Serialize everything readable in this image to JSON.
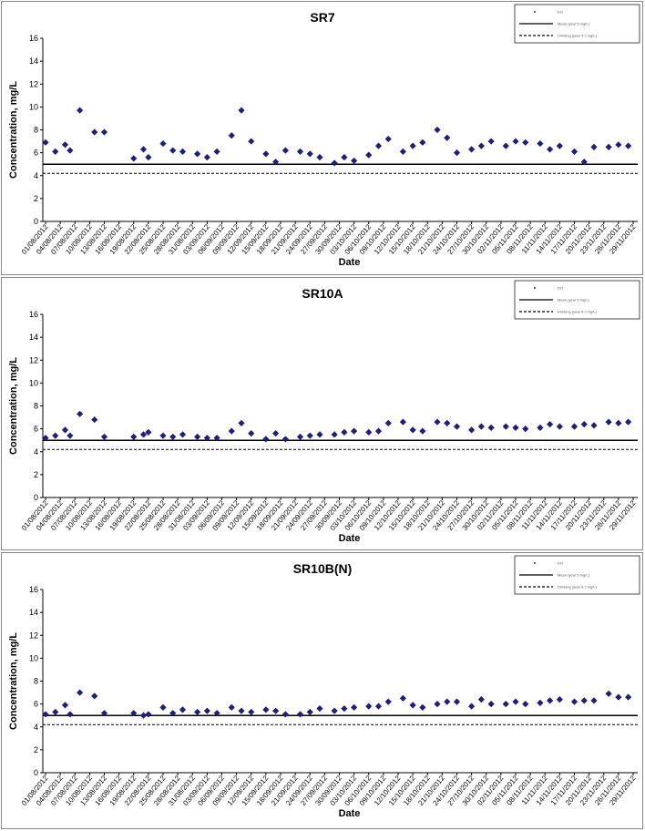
{
  "chart_data": [
    {
      "type": "scatter",
      "title": "SR7",
      "xlabel": "Date",
      "ylabel": "Concentration, mg/L",
      "ylim": [
        0,
        16
      ],
      "yticks": [
        0,
        2,
        4,
        6,
        8,
        10,
        12,
        14,
        16
      ],
      "x_tick_labels": [
        "01/08/2012",
        "04/08/2012",
        "07/08/2012",
        "10/08/2012",
        "13/08/2012",
        "16/08/2012",
        "19/08/2012",
        "22/08/2012",
        "25/08/2012",
        "28/08/2012",
        "31/08/2012",
        "03/09/2012",
        "06/09/2012",
        "09/09/2012",
        "12/09/2012",
        "15/09/2012",
        "18/09/2012",
        "21/09/2012",
        "24/09/2012",
        "27/09/2012",
        "30/09/2012",
        "03/10/2012",
        "06/10/2012",
        "09/10/2012",
        "12/10/2012",
        "15/10/2012",
        "18/10/2012",
        "21/10/2012",
        "24/10/2012",
        "27/10/2012",
        "30/10/2012",
        "02/11/2012",
        "05/11/2012",
        "08/11/2012",
        "11/11/2012",
        "14/11/2012",
        "17/11/2012",
        "20/11/2012",
        "23/11/2012",
        "26/11/2012",
        "29/11/2012"
      ],
      "grid": false,
      "legend_position": "top-right",
      "series": [
        {
          "name": "DO",
          "marker": "diamond",
          "color": "#1f1f7a",
          "points": [
            {
              "x": "01/08/2012",
              "y": 6.9
            },
            {
              "x": "03/08/2012",
              "y": 6.1
            },
            {
              "x": "05/08/2012",
              "y": 6.7
            },
            {
              "x": "06/08/2012",
              "y": 6.2
            },
            {
              "x": "08/08/2012",
              "y": 9.7
            },
            {
              "x": "11/08/2012",
              "y": 7.8
            },
            {
              "x": "13/08/2012",
              "y": 7.8
            },
            {
              "x": "19/08/2012",
              "y": 5.5
            },
            {
              "x": "21/08/2012",
              "y": 6.3
            },
            {
              "x": "22/08/2012",
              "y": 5.6
            },
            {
              "x": "25/08/2012",
              "y": 6.8
            },
            {
              "x": "27/08/2012",
              "y": 6.2
            },
            {
              "x": "29/08/2012",
              "y": 6.1
            },
            {
              "x": "01/09/2012",
              "y": 5.9
            },
            {
              "x": "03/09/2012",
              "y": 5.6
            },
            {
              "x": "05/09/2012",
              "y": 6.1
            },
            {
              "x": "08/09/2012",
              "y": 7.5
            },
            {
              "x": "10/09/2012",
              "y": 9.7
            },
            {
              "x": "12/09/2012",
              "y": 7.0
            },
            {
              "x": "15/09/2012",
              "y": 5.9
            },
            {
              "x": "17/09/2012",
              "y": 5.2
            },
            {
              "x": "19/09/2012",
              "y": 6.2
            },
            {
              "x": "22/09/2012",
              "y": 6.1
            },
            {
              "x": "24/09/2012",
              "y": 5.9
            },
            {
              "x": "26/09/2012",
              "y": 5.6
            },
            {
              "x": "29/09/2012",
              "y": 5.1
            },
            {
              "x": "01/10/2012",
              "y": 5.6
            },
            {
              "x": "03/10/2012",
              "y": 5.3
            },
            {
              "x": "06/10/2012",
              "y": 5.8
            },
            {
              "x": "08/10/2012",
              "y": 6.6
            },
            {
              "x": "10/10/2012",
              "y": 7.2
            },
            {
              "x": "13/10/2012",
              "y": 6.1
            },
            {
              "x": "15/10/2012",
              "y": 6.6
            },
            {
              "x": "17/10/2012",
              "y": 6.9
            },
            {
              "x": "20/10/2012",
              "y": 8.0
            },
            {
              "x": "22/10/2012",
              "y": 7.3
            },
            {
              "x": "24/10/2012",
              "y": 6.0
            },
            {
              "x": "27/10/2012",
              "y": 6.3
            },
            {
              "x": "29/10/2012",
              "y": 6.6
            },
            {
              "x": "31/10/2012",
              "y": 7.0
            },
            {
              "x": "03/11/2012",
              "y": 6.6
            },
            {
              "x": "05/11/2012",
              "y": 7.0
            },
            {
              "x": "07/11/2012",
              "y": 6.9
            },
            {
              "x": "10/11/2012",
              "y": 6.8
            },
            {
              "x": "12/11/2012",
              "y": 6.3
            },
            {
              "x": "14/11/2012",
              "y": 6.6
            },
            {
              "x": "17/11/2012",
              "y": 6.1
            },
            {
              "x": "19/11/2012",
              "y": 5.2
            },
            {
              "x": "21/11/2012",
              "y": 6.5
            },
            {
              "x": "24/11/2012",
              "y": 6.5
            },
            {
              "x": "26/11/2012",
              "y": 6.7
            },
            {
              "x": "28/11/2012",
              "y": 6.6
            }
          ]
        },
        {
          "name": "Mean (year 5 mg/L)",
          "type": "hline",
          "y": 5.0,
          "style": "solid",
          "color": "#000000"
        },
        {
          "name": "Drinking (year 4.2 mg/L)",
          "type": "hline",
          "y": 4.2,
          "style": "dashed",
          "color": "#000000"
        }
      ]
    },
    {
      "type": "scatter",
      "title": "SR10A",
      "xlabel": "Date",
      "ylabel": "Concentration, mg/L",
      "ylim": [
        0,
        16
      ],
      "yticks": [
        0,
        2,
        4,
        6,
        8,
        10,
        12,
        14,
        16
      ],
      "x_tick_labels": [
        "01/08/2012",
        "04/08/2012",
        "07/08/2012",
        "10/08/2012",
        "13/08/2012",
        "16/08/2012",
        "19/08/2012",
        "22/08/2012",
        "25/08/2012",
        "28/08/2012",
        "31/08/2012",
        "03/09/2012",
        "06/09/2012",
        "09/09/2012",
        "12/09/2012",
        "15/09/2012",
        "18/09/2012",
        "21/09/2012",
        "24/09/2012",
        "27/09/2012",
        "30/09/2012",
        "03/10/2012",
        "06/10/2012",
        "09/10/2012",
        "12/10/2012",
        "15/10/2012",
        "18/10/2012",
        "21/10/2012",
        "24/10/2012",
        "27/10/2012",
        "30/10/2012",
        "02/11/2012",
        "05/11/2012",
        "08/11/2012",
        "11/11/2012",
        "14/11/2012",
        "17/11/2012",
        "20/11/2012",
        "23/11/2012",
        "26/11/2012",
        "29/11/2012"
      ],
      "grid": false,
      "legend_position": "top-right",
      "series": [
        {
          "name": "DO",
          "marker": "diamond",
          "color": "#1f1f7a",
          "points": [
            {
              "x": "01/08/2012",
              "y": 5.2
            },
            {
              "x": "03/08/2012",
              "y": 5.4
            },
            {
              "x": "05/08/2012",
              "y": 5.9
            },
            {
              "x": "06/08/2012",
              "y": 5.4
            },
            {
              "x": "08/08/2012",
              "y": 7.3
            },
            {
              "x": "11/08/2012",
              "y": 6.8
            },
            {
              "x": "13/08/2012",
              "y": 5.3
            },
            {
              "x": "19/08/2012",
              "y": 5.3
            },
            {
              "x": "21/08/2012",
              "y": 5.5
            },
            {
              "x": "22/08/2012",
              "y": 5.7
            },
            {
              "x": "25/08/2012",
              "y": 5.4
            },
            {
              "x": "27/08/2012",
              "y": 5.3
            },
            {
              "x": "29/08/2012",
              "y": 5.5
            },
            {
              "x": "01/09/2012",
              "y": 5.3
            },
            {
              "x": "03/09/2012",
              "y": 5.2
            },
            {
              "x": "05/09/2012",
              "y": 5.2
            },
            {
              "x": "08/09/2012",
              "y": 5.8
            },
            {
              "x": "10/09/2012",
              "y": 6.5
            },
            {
              "x": "12/09/2012",
              "y": 5.6
            },
            {
              "x": "15/09/2012",
              "y": 5.1
            },
            {
              "x": "17/09/2012",
              "y": 5.6
            },
            {
              "x": "19/09/2012",
              "y": 5.1
            },
            {
              "x": "22/09/2012",
              "y": 5.3
            },
            {
              "x": "24/09/2012",
              "y": 5.4
            },
            {
              "x": "26/09/2012",
              "y": 5.5
            },
            {
              "x": "29/09/2012",
              "y": 5.5
            },
            {
              "x": "01/10/2012",
              "y": 5.7
            },
            {
              "x": "03/10/2012",
              "y": 5.8
            },
            {
              "x": "06/10/2012",
              "y": 5.7
            },
            {
              "x": "08/10/2012",
              "y": 5.8
            },
            {
              "x": "10/10/2012",
              "y": 6.5
            },
            {
              "x": "13/10/2012",
              "y": 6.6
            },
            {
              "x": "15/10/2012",
              "y": 5.9
            },
            {
              "x": "17/10/2012",
              "y": 5.8
            },
            {
              "x": "20/10/2012",
              "y": 6.6
            },
            {
              "x": "22/10/2012",
              "y": 6.5
            },
            {
              "x": "24/10/2012",
              "y": 6.2
            },
            {
              "x": "27/10/2012",
              "y": 5.9
            },
            {
              "x": "29/10/2012",
              "y": 6.2
            },
            {
              "x": "31/10/2012",
              "y": 6.1
            },
            {
              "x": "03/11/2012",
              "y": 6.2
            },
            {
              "x": "05/11/2012",
              "y": 6.1
            },
            {
              "x": "07/11/2012",
              "y": 6.0
            },
            {
              "x": "10/11/2012",
              "y": 6.1
            },
            {
              "x": "12/11/2012",
              "y": 6.4
            },
            {
              "x": "14/11/2012",
              "y": 6.2
            },
            {
              "x": "17/11/2012",
              "y": 6.2
            },
            {
              "x": "19/11/2012",
              "y": 6.4
            },
            {
              "x": "21/11/2012",
              "y": 6.3
            },
            {
              "x": "24/11/2012",
              "y": 6.6
            },
            {
              "x": "26/11/2012",
              "y": 6.5
            },
            {
              "x": "28/11/2012",
              "y": 6.6
            }
          ]
        },
        {
          "name": "Mean (year 5 mg/L)",
          "type": "hline",
          "y": 5.0,
          "style": "solid",
          "color": "#000000"
        },
        {
          "name": "Drinking (year 4.2 mg/L)",
          "type": "hline",
          "y": 4.2,
          "style": "dashed",
          "color": "#000000"
        }
      ]
    },
    {
      "type": "scatter",
      "title": "SR10B(N)",
      "xlabel": "Date",
      "ylabel": "Concentration, mg/L",
      "ylim": [
        0,
        16
      ],
      "yticks": [
        0,
        2,
        4,
        6,
        8,
        10,
        12,
        14,
        16
      ],
      "x_tick_labels": [
        "01/08/2012",
        "04/08/2012",
        "07/08/2012",
        "10/08/2012",
        "13/08/2012",
        "16/08/2012",
        "19/08/2012",
        "22/08/2012",
        "25/08/2012",
        "28/08/2012",
        "31/08/2012",
        "03/09/2012",
        "06/09/2012",
        "09/09/2012",
        "12/09/2012",
        "15/09/2012",
        "18/09/2012",
        "21/09/2012",
        "24/09/2012",
        "27/09/2012",
        "30/09/2012",
        "03/10/2012",
        "06/10/2012",
        "09/10/2012",
        "12/10/2012",
        "15/10/2012",
        "18/10/2012",
        "21/10/2012",
        "24/10/2012",
        "27/10/2012",
        "30/10/2012",
        "02/11/2012",
        "05/11/2012",
        "08/11/2012",
        "11/11/2012",
        "14/11/2012",
        "17/11/2012",
        "20/11/2012",
        "23/11/2012",
        "26/11/2012",
        "29/11/2012"
      ],
      "grid": false,
      "legend_position": "top-right",
      "series": [
        {
          "name": "DO",
          "marker": "diamond",
          "color": "#1f1f7a",
          "points": [
            {
              "x": "01/08/2012",
              "y": 5.1
            },
            {
              "x": "03/08/2012",
              "y": 5.3
            },
            {
              "x": "05/08/2012",
              "y": 5.9
            },
            {
              "x": "06/08/2012",
              "y": 5.1
            },
            {
              "x": "08/08/2012",
              "y": 7.0
            },
            {
              "x": "11/08/2012",
              "y": 6.7
            },
            {
              "x": "13/08/2012",
              "y": 5.2
            },
            {
              "x": "19/08/2012",
              "y": 5.2
            },
            {
              "x": "21/08/2012",
              "y": 5.0
            },
            {
              "x": "22/08/2012",
              "y": 5.1
            },
            {
              "x": "25/08/2012",
              "y": 5.7
            },
            {
              "x": "27/08/2012",
              "y": 5.2
            },
            {
              "x": "29/08/2012",
              "y": 5.5
            },
            {
              "x": "01/09/2012",
              "y": 5.3
            },
            {
              "x": "03/09/2012",
              "y": 5.4
            },
            {
              "x": "05/09/2012",
              "y": 5.2
            },
            {
              "x": "08/09/2012",
              "y": 5.7
            },
            {
              "x": "10/09/2012",
              "y": 5.4
            },
            {
              "x": "12/09/2012",
              "y": 5.3
            },
            {
              "x": "15/09/2012",
              "y": 5.5
            },
            {
              "x": "17/09/2012",
              "y": 5.4
            },
            {
              "x": "19/09/2012",
              "y": 5.1
            },
            {
              "x": "22/09/2012",
              "y": 5.1
            },
            {
              "x": "24/09/2012",
              "y": 5.3
            },
            {
              "x": "26/09/2012",
              "y": 5.6
            },
            {
              "x": "29/09/2012",
              "y": 5.4
            },
            {
              "x": "01/10/2012",
              "y": 5.6
            },
            {
              "x": "03/10/2012",
              "y": 5.7
            },
            {
              "x": "06/10/2012",
              "y": 5.8
            },
            {
              "x": "08/10/2012",
              "y": 5.8
            },
            {
              "x": "10/10/2012",
              "y": 6.2
            },
            {
              "x": "13/10/2012",
              "y": 6.5
            },
            {
              "x": "15/10/2012",
              "y": 5.9
            },
            {
              "x": "17/10/2012",
              "y": 5.7
            },
            {
              "x": "20/10/2012",
              "y": 6.0
            },
            {
              "x": "22/10/2012",
              "y": 6.2
            },
            {
              "x": "24/10/2012",
              "y": 6.2
            },
            {
              "x": "27/10/2012",
              "y": 5.8
            },
            {
              "x": "29/10/2012",
              "y": 6.4
            },
            {
              "x": "31/10/2012",
              "y": 6.0
            },
            {
              "x": "03/11/2012",
              "y": 6.0
            },
            {
              "x": "05/11/2012",
              "y": 6.2
            },
            {
              "x": "07/11/2012",
              "y": 6.0
            },
            {
              "x": "10/11/2012",
              "y": 6.1
            },
            {
              "x": "12/11/2012",
              "y": 6.3
            },
            {
              "x": "14/11/2012",
              "y": 6.4
            },
            {
              "x": "17/11/2012",
              "y": 6.2
            },
            {
              "x": "19/11/2012",
              "y": 6.3
            },
            {
              "x": "21/11/2012",
              "y": 6.3
            },
            {
              "x": "24/11/2012",
              "y": 6.9
            },
            {
              "x": "26/11/2012",
              "y": 6.6
            },
            {
              "x": "28/11/2012",
              "y": 6.6
            }
          ]
        },
        {
          "name": "Mean (year 5 mg/L)",
          "type": "hline",
          "y": 5.0,
          "style": "solid",
          "color": "#000000"
        },
        {
          "name": "Drinking (year 4.2 mg/L)",
          "type": "hline",
          "y": 4.2,
          "style": "dashed",
          "color": "#000000"
        }
      ]
    }
  ]
}
